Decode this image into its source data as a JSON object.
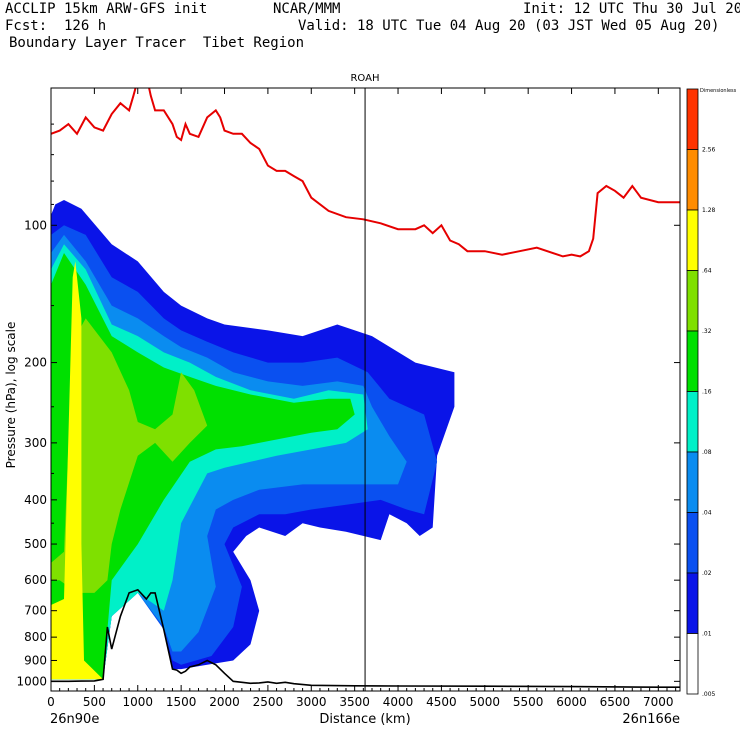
{
  "header": {
    "model": "ACCLIP 15km ARW-GFS init",
    "center": "NCAR/MMM",
    "init": "Init: 12 UTC Thu 30 Jul 20",
    "fcst": "Fcst:  126 h",
    "valid": "Valid: 18 UTC Tue 04 Aug 20 (03 JST Wed 05 Aug 20)",
    "product": "Boundary Layer Tracer  Tibet Region"
  },
  "chart_data": {
    "type": "heatmap",
    "title": "ROAH",
    "xlabel": "Distance (km)",
    "ylabel": "Pressure (hPa), log scale",
    "xlim": [
      0,
      7250
    ],
    "ylim": [
      1050,
      50
    ],
    "yscale": "log",
    "x_ticks": [
      0,
      500,
      1000,
      1500,
      2000,
      2500,
      3000,
      3500,
      4000,
      4500,
      5000,
      5500,
      6000,
      6500,
      7000
    ],
    "x_tick_labels": [
      "0",
      "500",
      "1000",
      "1500",
      "2000",
      "2500",
      "3000",
      "3500",
      "4000",
      "4500",
      "5000",
      "5500",
      "6000",
      "6500",
      "7000"
    ],
    "y_ticks": [
      100,
      200,
      300,
      400,
      500,
      600,
      700,
      800,
      900,
      1000
    ],
    "y_tick_labels": [
      "100",
      "200",
      "300",
      "400",
      "500",
      "600",
      "700",
      "800",
      "900",
      "1000"
    ],
    "start_label": "26n90e",
    "end_label": "26n166e",
    "vertical_marker_km": 3620,
    "colorbar": {
      "top_label": "Dimensionless",
      "levels": [
        "2.56",
        "1.28",
        ".64",
        ".32",
        ".16",
        ".08",
        ".04",
        ".02",
        ".01",
        ".005"
      ],
      "colors": [
        "#ff3300",
        "#ff8c00",
        "#ffff00",
        "#7fe000",
        "#00e000",
        "#00f0c8",
        "#0a8cf0",
        "#0a50f0",
        "#0a14e8",
        "#ffffff"
      ]
    },
    "tropopause_red_line": {
      "x": [
        0,
        100,
        200,
        300,
        400,
        500,
        600,
        700,
        800,
        900,
        950,
        1000,
        1100,
        1150,
        1200,
        1300,
        1400,
        1450,
        1500,
        1550,
        1600,
        1700,
        1800,
        1900,
        1950,
        2000,
        2100,
        2200,
        2300,
        2400,
        2500,
        2600,
        2700,
        2800,
        2900,
        3000,
        3200,
        3400,
        3600,
        3800,
        4000,
        4200,
        4300,
        4400,
        4500,
        4600,
        4700,
        4800,
        5000,
        5200,
        5400,
        5600,
        5900,
        6000,
        6100,
        6200,
        6250,
        6300,
        6400,
        6500,
        6600,
        6700,
        6800,
        7000,
        7250
      ],
      "y": [
        63,
        62,
        60,
        63,
        58,
        61,
        62,
        57,
        54,
        56,
        52,
        48,
        47,
        52,
        56,
        56,
        60,
        64,
        65,
        60,
        63,
        64,
        58,
        56,
        58,
        62,
        63,
        63,
        66,
        68,
        74,
        76,
        76,
        78,
        80,
        87,
        93,
        96,
        97,
        99,
        102,
        102,
        100,
        104,
        100,
        108,
        110,
        114,
        114,
        116,
        114,
        112,
        117,
        116,
        117,
        114,
        107,
        85,
        82,
        84,
        87,
        82,
        87,
        89,
        89
      ]
    },
    "terrain_black_line": {
      "x": [
        0,
        200,
        350,
        500,
        600,
        650,
        700,
        800,
        900,
        1000,
        1100,
        1150,
        1200,
        1300,
        1400,
        1450,
        1500,
        1550,
        1600,
        1700,
        1800,
        1900,
        2000,
        2100,
        2200,
        2300,
        2400,
        2500,
        2600,
        2700,
        2800,
        3000,
        3500,
        4000,
        5000,
        6000,
        7000,
        7250
      ],
      "y": [
        1000,
        1000,
        999,
        998,
        990,
        760,
        850,
        720,
        640,
        630,
        660,
        640,
        640,
        770,
        940,
        945,
        960,
        950,
        930,
        920,
        900,
        920,
        960,
        1000,
        1005,
        1010,
        1008,
        1003,
        1010,
        1005,
        1012,
        1020,
        1023,
        1024,
        1025,
        1027,
        1030,
        1030
      ]
    },
    "contours": [
      {
        "level": ".01",
        "pts": [
          [
            0,
            95
          ],
          [
            50,
            90
          ],
          [
            150,
            88
          ],
          [
            350,
            92
          ],
          [
            700,
            110
          ],
          [
            1000,
            120
          ],
          [
            1300,
            140
          ],
          [
            1500,
            150
          ],
          [
            1800,
            160
          ],
          [
            2000,
            165
          ],
          [
            2500,
            170
          ],
          [
            2900,
            175
          ],
          [
            3300,
            165
          ],
          [
            3700,
            175
          ],
          [
            4200,
            200
          ],
          [
            4650,
            210
          ],
          [
            4650,
            250
          ],
          [
            4450,
            320
          ],
          [
            4400,
            460
          ],
          [
            4250,
            480
          ],
          [
            4100,
            450
          ],
          [
            3900,
            430
          ],
          [
            3800,
            490
          ],
          [
            3400,
            470
          ],
          [
            3100,
            460
          ],
          [
            2900,
            450
          ],
          [
            2700,
            480
          ],
          [
            2400,
            460
          ],
          [
            2250,
            480
          ],
          [
            2100,
            520
          ],
          [
            2300,
            600
          ],
          [
            2400,
            700
          ],
          [
            2300,
            830
          ],
          [
            2100,
            900
          ],
          [
            1800,
            920
          ],
          [
            1500,
            940
          ],
          [
            1400,
            940
          ],
          [
            1300,
            770
          ],
          [
            1000,
            630
          ],
          [
            700,
            720
          ],
          [
            600,
            990
          ],
          [
            0,
            990
          ]
        ]
      },
      {
        "level": ".02",
        "pts": [
          [
            0,
            105
          ],
          [
            150,
            100
          ],
          [
            400,
            105
          ],
          [
            700,
            130
          ],
          [
            1000,
            140
          ],
          [
            1300,
            160
          ],
          [
            1500,
            170
          ],
          [
            1800,
            180
          ],
          [
            2100,
            190
          ],
          [
            2500,
            200
          ],
          [
            2900,
            200
          ],
          [
            3300,
            195
          ],
          [
            3650,
            210
          ],
          [
            3900,
            240
          ],
          [
            4300,
            260
          ],
          [
            4450,
            330
          ],
          [
            4300,
            430
          ],
          [
            4100,
            420
          ],
          [
            3800,
            400
          ],
          [
            3400,
            410
          ],
          [
            3000,
            420
          ],
          [
            2700,
            430
          ],
          [
            2400,
            430
          ],
          [
            2100,
            460
          ],
          [
            2000,
            500
          ],
          [
            2200,
            620
          ],
          [
            2100,
            760
          ],
          [
            1850,
            880
          ],
          [
            1500,
            920
          ],
          [
            1400,
            900
          ],
          [
            1300,
            770
          ],
          [
            1000,
            640
          ],
          [
            700,
            720
          ],
          [
            600,
            990
          ],
          [
            0,
            990
          ]
        ]
      },
      {
        "level": ".04",
        "pts": [
          [
            0,
            115
          ],
          [
            150,
            105
          ],
          [
            400,
            120
          ],
          [
            700,
            150
          ],
          [
            1000,
            160
          ],
          [
            1300,
            175
          ],
          [
            1500,
            185
          ],
          [
            1800,
            195
          ],
          [
            2100,
            210
          ],
          [
            2500,
            220
          ],
          [
            2900,
            225
          ],
          [
            3300,
            220
          ],
          [
            3600,
            225
          ],
          [
            3700,
            250
          ],
          [
            3900,
            290
          ],
          [
            4100,
            330
          ],
          [
            4000,
            370
          ],
          [
            3700,
            370
          ],
          [
            3300,
            370
          ],
          [
            2900,
            370
          ],
          [
            2400,
            380
          ],
          [
            2100,
            400
          ],
          [
            1900,
            420
          ],
          [
            1800,
            480
          ],
          [
            1900,
            620
          ],
          [
            1700,
            780
          ],
          [
            1500,
            860
          ],
          [
            1400,
            860
          ],
          [
            1300,
            760
          ],
          [
            1000,
            640
          ],
          [
            700,
            720
          ],
          [
            600,
            990
          ],
          [
            0,
            990
          ]
        ]
      },
      {
        "level": ".08",
        "pts": [
          [
            0,
            125
          ],
          [
            150,
            110
          ],
          [
            400,
            125
          ],
          [
            700,
            165
          ],
          [
            1000,
            175
          ],
          [
            1300,
            190
          ],
          [
            1600,
            200
          ],
          [
            1900,
            215
          ],
          [
            2300,
            230
          ],
          [
            2800,
            240
          ],
          [
            3200,
            230
          ],
          [
            3600,
            235
          ],
          [
            3650,
            280
          ],
          [
            3400,
            300
          ],
          [
            3000,
            310
          ],
          [
            2600,
            320
          ],
          [
            2300,
            330
          ],
          [
            2000,
            340
          ],
          [
            1800,
            350
          ],
          [
            1500,
            450
          ],
          [
            1400,
            600
          ],
          [
            1300,
            700
          ],
          [
            1000,
            640
          ],
          [
            700,
            720
          ],
          [
            600,
            990
          ],
          [
            0,
            990
          ]
        ]
      },
      {
        "level": ".16",
        "pts": [
          [
            0,
            135
          ],
          [
            150,
            115
          ],
          [
            400,
            135
          ],
          [
            700,
            175
          ],
          [
            1000,
            190
          ],
          [
            1300,
            205
          ],
          [
            1600,
            215
          ],
          [
            1900,
            225
          ],
          [
            2300,
            235
          ],
          [
            2800,
            245
          ],
          [
            3200,
            240
          ],
          [
            3450,
            240
          ],
          [
            3500,
            260
          ],
          [
            3300,
            280
          ],
          [
            3000,
            285
          ],
          [
            2600,
            295
          ],
          [
            2200,
            305
          ],
          [
            1900,
            310
          ],
          [
            1600,
            330
          ],
          [
            1300,
            400
          ],
          [
            1000,
            500
          ],
          [
            700,
            600
          ],
          [
            600,
            990
          ],
          [
            0,
            990
          ]
        ]
      },
      {
        "level": ".32",
        "pts": [
          [
            0,
            550
          ],
          [
            150,
            520
          ],
          [
            250,
            180
          ],
          [
            400,
            160
          ],
          [
            700,
            190
          ],
          [
            900,
            230
          ],
          [
            1000,
            270
          ],
          [
            1200,
            280
          ],
          [
            1400,
            260
          ],
          [
            1500,
            210
          ],
          [
            1650,
            230
          ],
          [
            1800,
            275
          ],
          [
            1600,
            300
          ],
          [
            1400,
            330
          ],
          [
            1200,
            300
          ],
          [
            1000,
            320
          ],
          [
            800,
            420
          ],
          [
            700,
            500
          ],
          [
            650,
            600
          ],
          [
            500,
            640
          ],
          [
            300,
            640
          ],
          [
            100,
            600
          ],
          [
            0,
            600
          ]
        ]
      },
      {
        "level": ".64",
        "pts": [
          [
            0,
            680
          ],
          [
            150,
            660
          ],
          [
            250,
            130
          ],
          [
            280,
            120
          ],
          [
            350,
            160
          ],
          [
            350,
            500
          ],
          [
            380,
            900
          ],
          [
            600,
            990
          ],
          [
            0,
            990
          ]
        ]
      }
    ]
  }
}
